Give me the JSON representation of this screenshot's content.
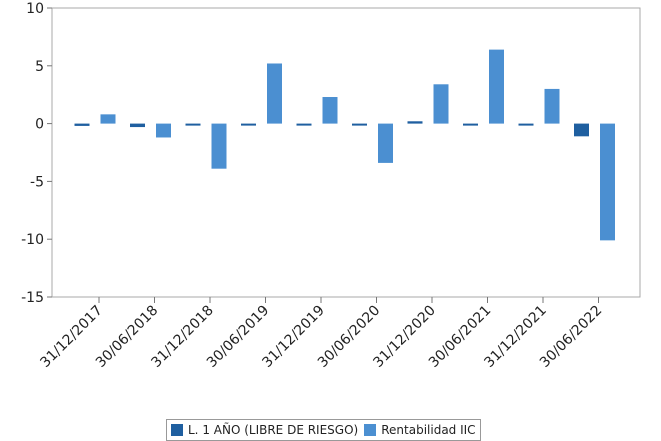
{
  "chart_data": {
    "type": "bar",
    "categories": [
      "31/12/2017",
      "30/06/2018",
      "31/12/2018",
      "30/06/2019",
      "31/12/2019",
      "30/06/2020",
      "31/12/2020",
      "30/06/2021",
      "31/12/2021",
      "30/06/2022"
    ],
    "series": [
      {
        "name": "L. 1 AÑO (LIBRE DE RIESGO)",
        "color": "#1f5fa0",
        "values": [
          -0.2,
          -0.3,
          -0.1,
          -0.1,
          -0.1,
          -0.1,
          0.2,
          -0.1,
          -0.1,
          -1.1
        ]
      },
      {
        "name": "Rentabilidad IIC",
        "color": "#4b8fd1",
        "values": [
          0.8,
          -1.2,
          -3.9,
          5.2,
          2.3,
          -3.4,
          3.4,
          6.4,
          3.0,
          -10.1
        ]
      }
    ],
    "ylim": [
      -15,
      10
    ],
    "yticks": [
      -15,
      -10,
      -5,
      0,
      5,
      10
    ],
    "ytick_labels": [
      "-15",
      "-10",
      "-5",
      "0",
      "5",
      "10"
    ],
    "title": "",
    "xlabel": "",
    "ylabel": "",
    "grid": false,
    "legend_position": "bottom"
  }
}
